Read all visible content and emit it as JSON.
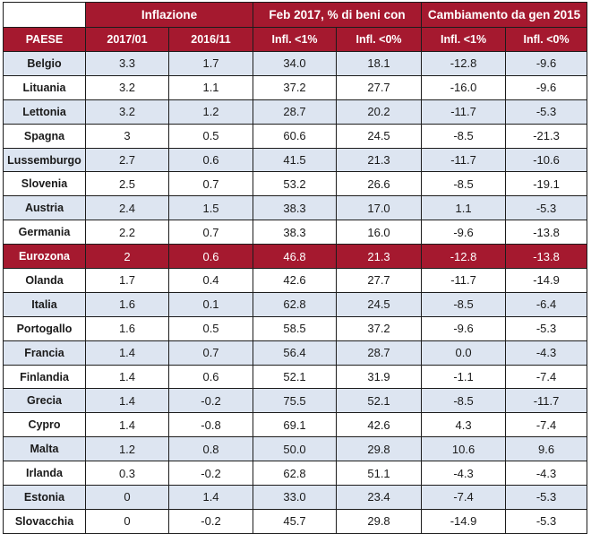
{
  "header": {
    "groups": [
      "Inflazione",
      "Feb 2017, % di beni con",
      "Cambiamento da gen 2015"
    ],
    "columns": [
      "PAESE",
      "2017/01",
      "2016/11",
      "Infl. <1%",
      "Infl. <0%",
      "Infl. <1%",
      "Infl. <0%"
    ]
  },
  "rows": [
    {
      "paese": "Belgio",
      "inf_2017_01": "3.3",
      "inf_2016_11": "1.7",
      "feb_lt1": "34.0",
      "feb_lt0": "18.1",
      "chg_lt1": "-12.8",
      "chg_lt0": "-9.6"
    },
    {
      "paese": "Lituania",
      "inf_2017_01": "3.2",
      "inf_2016_11": "1.1",
      "feb_lt1": "37.2",
      "feb_lt0": "27.7",
      "chg_lt1": "-16.0",
      "chg_lt0": "-9.6"
    },
    {
      "paese": "Lettonia",
      "inf_2017_01": "3.2",
      "inf_2016_11": "1.2",
      "feb_lt1": "28.7",
      "feb_lt0": "20.2",
      "chg_lt1": "-11.7",
      "chg_lt0": "-5.3"
    },
    {
      "paese": "Spagna",
      "inf_2017_01": "3",
      "inf_2016_11": "0.5",
      "feb_lt1": "60.6",
      "feb_lt0": "24.5",
      "chg_lt1": "-8.5",
      "chg_lt0": "-21.3"
    },
    {
      "paese": "Lussemburgo",
      "inf_2017_01": "2.7",
      "inf_2016_11": "0.6",
      "feb_lt1": "41.5",
      "feb_lt0": "21.3",
      "chg_lt1": "-11.7",
      "chg_lt0": "-10.6"
    },
    {
      "paese": "Slovenia",
      "inf_2017_01": "2.5",
      "inf_2016_11": "0.7",
      "feb_lt1": "53.2",
      "feb_lt0": "26.6",
      "chg_lt1": "-8.5",
      "chg_lt0": "-19.1"
    },
    {
      "paese": "Austria",
      "inf_2017_01": "2.4",
      "inf_2016_11": "1.5",
      "feb_lt1": "38.3",
      "feb_lt0": "17.0",
      "chg_lt1": "1.1",
      "chg_lt0": "-5.3"
    },
    {
      "paese": "Germania",
      "inf_2017_01": "2.2",
      "inf_2016_11": "0.7",
      "feb_lt1": "38.3",
      "feb_lt0": "16.0",
      "chg_lt1": "-9.6",
      "chg_lt0": "-13.8"
    },
    {
      "paese": "Eurozona",
      "inf_2017_01": "2",
      "inf_2016_11": "0.6",
      "feb_lt1": "46.8",
      "feb_lt0": "21.3",
      "chg_lt1": "-12.8",
      "chg_lt0": "-13.8"
    },
    {
      "paese": "Olanda",
      "inf_2017_01": "1.7",
      "inf_2016_11": "0.4",
      "feb_lt1": "42.6",
      "feb_lt0": "27.7",
      "chg_lt1": "-11.7",
      "chg_lt0": "-14.9"
    },
    {
      "paese": "Italia",
      "inf_2017_01": "1.6",
      "inf_2016_11": "0.1",
      "feb_lt1": "62.8",
      "feb_lt0": "24.5",
      "chg_lt1": "-8.5",
      "chg_lt0": "-6.4"
    },
    {
      "paese": "Portogallo",
      "inf_2017_01": "1.6",
      "inf_2016_11": "0.5",
      "feb_lt1": "58.5",
      "feb_lt0": "37.2",
      "chg_lt1": "-9.6",
      "chg_lt0": "-5.3"
    },
    {
      "paese": "Francia",
      "inf_2017_01": "1.4",
      "inf_2016_11": "0.7",
      "feb_lt1": "56.4",
      "feb_lt0": "28.7",
      "chg_lt1": "0.0",
      "chg_lt0": "-4.3"
    },
    {
      "paese": "Finlandia",
      "inf_2017_01": "1.4",
      "inf_2016_11": "0.6",
      "feb_lt1": "52.1",
      "feb_lt0": "31.9",
      "chg_lt1": "-1.1",
      "chg_lt0": "-7.4"
    },
    {
      "paese": "Grecia",
      "inf_2017_01": "1.4",
      "inf_2016_11": "-0.2",
      "feb_lt1": "75.5",
      "feb_lt0": "52.1",
      "chg_lt1": "-8.5",
      "chg_lt0": "-11.7"
    },
    {
      "paese": "Cypro",
      "inf_2017_01": "1.4",
      "inf_2016_11": "-0.8",
      "feb_lt1": "69.1",
      "feb_lt0": "42.6",
      "chg_lt1": "4.3",
      "chg_lt0": "-7.4"
    },
    {
      "paese": "Malta",
      "inf_2017_01": "1.2",
      "inf_2016_11": "0.8",
      "feb_lt1": "50.0",
      "feb_lt0": "29.8",
      "chg_lt1": "10.6",
      "chg_lt0": "9.6"
    },
    {
      "paese": "Irlanda",
      "inf_2017_01": "0.3",
      "inf_2016_11": "-0.2",
      "feb_lt1": "62.8",
      "feb_lt0": "51.1",
      "chg_lt1": "-4.3",
      "chg_lt0": "-4.3"
    },
    {
      "paese": "Estonia",
      "inf_2017_01": "0",
      "inf_2016_11": "1.4",
      "feb_lt1": "33.0",
      "feb_lt0": "23.4",
      "chg_lt1": "-7.4",
      "chg_lt0": "-5.3"
    },
    {
      "paese": "Slovacchia",
      "inf_2017_01": "0",
      "inf_2016_11": "-0.2",
      "feb_lt1": "45.7",
      "feb_lt0": "29.8",
      "chg_lt1": "-14.9",
      "chg_lt0": "-5.3"
    }
  ],
  "highlight_row": "Eurozona",
  "colors": {
    "header_bg": "#a5192f",
    "header_text": "#ffffff",
    "alt_row_bg": "#dde5f1",
    "plain_row_bg": "#ffffff",
    "border": "#1c1c1c"
  }
}
